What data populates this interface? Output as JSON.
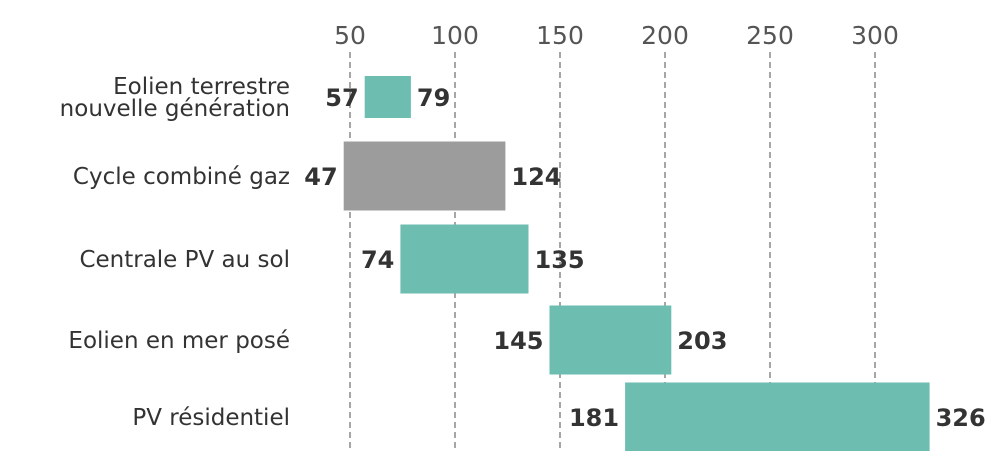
{
  "chart_data": {
    "type": "bar",
    "orientation": "horizontal-range",
    "title": "",
    "xlabel": "",
    "ylabel": "",
    "x_ticks": [
      50,
      100,
      150,
      200,
      250,
      300
    ],
    "grid": true,
    "legend": "none",
    "categories": [
      [
        "Eolien terrestre",
        "nouvelle génération"
      ],
      [
        "Cycle combiné gaz"
      ],
      [
        "Centrale PV au sol"
      ],
      [
        "Eolien en mer posé"
      ],
      [
        "PV résidentiel"
      ]
    ],
    "ranges": [
      {
        "low": 57,
        "high": 79,
        "color": "#6dbdb1"
      },
      {
        "low": 47,
        "high": 124,
        "color": "#9c9c9c"
      },
      {
        "low": 74,
        "high": 135,
        "color": "#6dbdb1"
      },
      {
        "low": 145,
        "high": 203,
        "color": "#6dbdb1"
      },
      {
        "low": 181,
        "high": 326,
        "color": "#6dbdb1"
      }
    ]
  }
}
